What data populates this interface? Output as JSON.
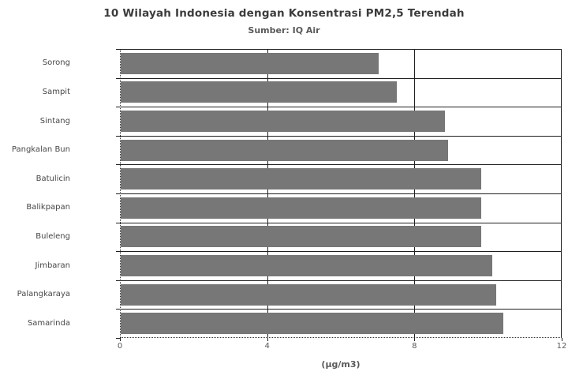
{
  "chart": {
    "title": "10 Wilayah Indonesia dengan Konsentrasi PM2,5 Terendah",
    "subtitle": "Sumber: IQ Air",
    "xlabel": "(µg/m3)"
  },
  "chart_data": {
    "type": "bar",
    "orientation": "horizontal",
    "title": "10 Wilayah Indonesia dengan Konsentrasi PM2,5 Terendah",
    "subtitle": "Sumber: IQ Air",
    "xlabel": "(µg/m3)",
    "ylabel": "",
    "categories": [
      "Sorong",
      "Sampit",
      "Sintang",
      "Pangkalan Bun",
      "Batulicin",
      "Balikpapan",
      "Buleleng",
      "Jimbaran",
      "Palangkaraya",
      "Samarinda"
    ],
    "values": [
      7.0,
      7.5,
      8.8,
      8.9,
      9.8,
      9.8,
      9.8,
      10.1,
      10.2,
      10.4
    ],
    "unit": "µg/m3",
    "xlim": [
      0,
      12
    ],
    "xticks": [
      0,
      4,
      8,
      12
    ],
    "grid": true,
    "legend": false,
    "bar_color": "#777777",
    "line_color": "#1f1f1f",
    "background_color": "#ffffff"
  }
}
